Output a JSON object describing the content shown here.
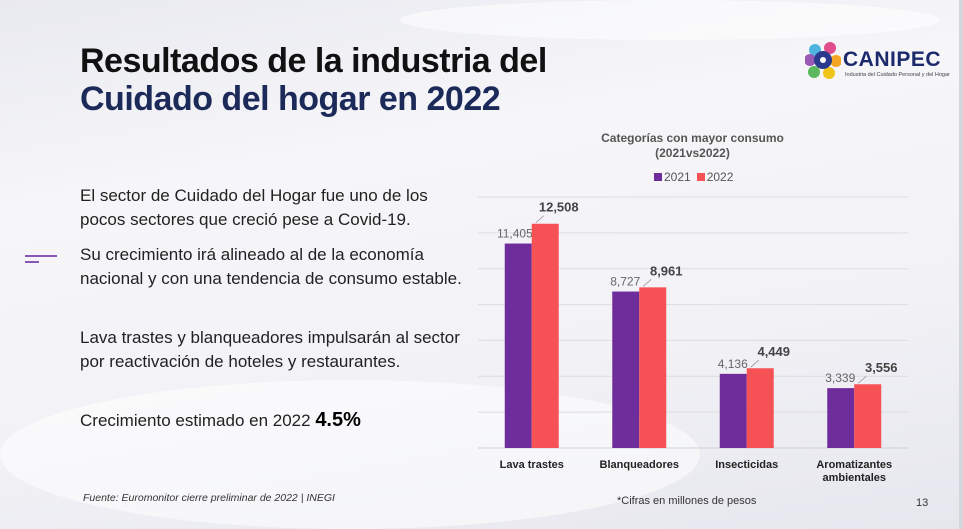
{
  "slide": {
    "title_line1": "Resultados de la industria del",
    "title_line2": "Cuidado del hogar en 2022",
    "logo": {
      "name": "CANIPEC",
      "tagline": "Industria del Cuidado Personal y del Hogar"
    },
    "paragraphs": [
      "El sector de Cuidado del Hogar fue uno de los pocos sectores que creció pese a Covid-19.",
      "Su crecimiento irá alineado al de la economía nacional y con una tendencia de consumo estable.",
      "Lava trastes y blanqueadores impulsarán al sector por reactivación de hoteles y restaurantes."
    ],
    "growth_label": "Crecimiento estimado en 2022",
    "growth_value": "4.5%",
    "source": "Fuente: Euromonitor cierre preliminar de 2022 | INEGI",
    "note": "*Cifras en millones de pesos",
    "page_number": "13",
    "accent_color": "#7b3fa6"
  },
  "chart_data": {
    "type": "bar",
    "title": "Categorías con mayor consumo (2021vs2022)",
    "title_line1": "Categorías con mayor consumo",
    "title_line2": "(2021vs2022)",
    "categories": [
      "Lava trastes",
      "Blanqueadores",
      "Insecticidas",
      "Aromatizantes ambientales"
    ],
    "category_lines": [
      [
        "Lava trastes"
      ],
      [
        "Blanqueadores"
      ],
      [
        "Insecticidas"
      ],
      [
        "Aromatizantes",
        "ambientales"
      ]
    ],
    "series": [
      {
        "name": "2021",
        "values": [
          11405,
          8727,
          4136,
          3339
        ],
        "labels": [
          "11,405",
          "8,727",
          "4,136",
          "3,339"
        ],
        "color": "#6f2c9b"
      },
      {
        "name": "2022",
        "values": [
          12508,
          8961,
          4449,
          3556
        ],
        "labels": [
          "12,508",
          "8,961",
          "4,449",
          "3,556"
        ],
        "color": "#f65256"
      }
    ],
    "ylim": [
      0,
      14000
    ],
    "grid_step": 2000,
    "grid": true,
    "legend": "top"
  }
}
